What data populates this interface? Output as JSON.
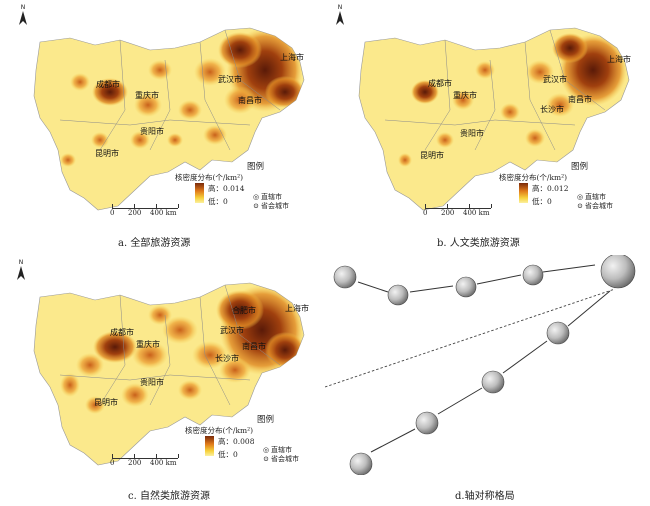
{
  "north_label": "N",
  "legend": {
    "title": "核密度分布(个/km²)",
    "header": "图例",
    "municipality": "直辖市",
    "capital": "省会城市",
    "low": "低：0"
  },
  "scale": {
    "ticks": [
      "0",
      "200",
      "400 km"
    ]
  },
  "panels": [
    {
      "caption": "a. 全部旅游资源",
      "high": "高：0.014",
      "cities": [
        "成都市",
        "重庆市",
        "武汉市",
        "上海市",
        "南昌市",
        "贵阳市",
        "昆明市"
      ]
    },
    {
      "caption": "b. 人文类旅游资源",
      "high": "高：0.012",
      "cities": [
        "成都市",
        "重庆市",
        "武汉市",
        "上海市",
        "长沙市",
        "南昌市",
        "贵阳市",
        "昆明市"
      ]
    },
    {
      "caption": "c. 自然类旅游资源",
      "high": "高：0.008",
      "cities": [
        "成都市",
        "重庆市",
        "合肥市",
        "上海市",
        "武汉市",
        "长沙市",
        "南昌市",
        "贵阳市",
        "昆明市"
      ]
    }
  ],
  "axis_caption": "d.轴对称格局"
}
